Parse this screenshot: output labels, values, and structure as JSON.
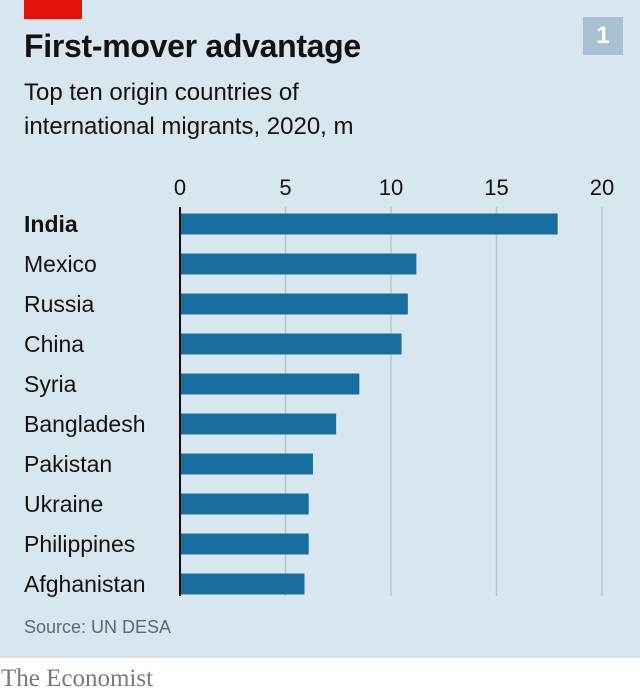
{
  "chart_data": {
    "type": "bar",
    "orientation": "horizontal",
    "title": "First-mover advantage",
    "subtitle": "Top ten origin countries of international migrants, 2020, m",
    "chart_number": "1",
    "categories": [
      "India",
      "Mexico",
      "Russia",
      "China",
      "Syria",
      "Bangladesh",
      "Pakistan",
      "Ukraine",
      "Philippines",
      "Afghanistan"
    ],
    "highlighted_category": "India",
    "values": [
      17.9,
      11.2,
      10.8,
      10.5,
      8.5,
      7.4,
      6.3,
      6.1,
      6.1,
      5.9
    ],
    "xlim": [
      0,
      20
    ],
    "xticks": [
      0,
      5,
      10,
      15,
      20
    ],
    "xlabel": "",
    "ylabel": "",
    "grid": true,
    "source": "Source: UN DESA",
    "publisher": "The Economist"
  },
  "colors": {
    "background": "#d8e6ef",
    "bar": "#1a6e9f",
    "grid": "#b3c6d3",
    "accent": "#e3120b"
  }
}
